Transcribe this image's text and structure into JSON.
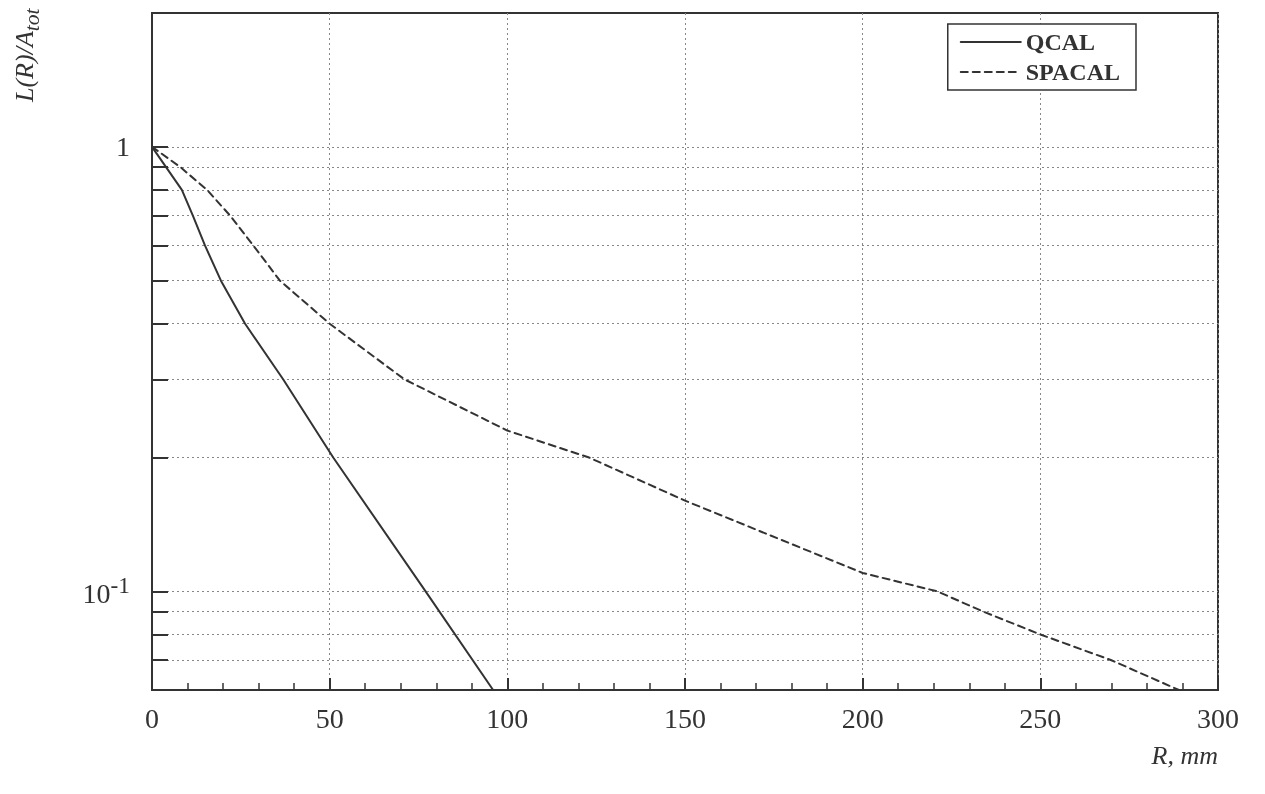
{
  "chart_data": {
    "type": "line",
    "xlabel": "R, mm",
    "ylabel": "L(R)/A$_{tot}$",
    "series": [
      {
        "name": "QCAL",
        "color": "#333333",
        "line_style": "solid",
        "x": [
          0,
          8.4,
          11.5,
          14.9,
          19.4,
          26.2,
          36.9,
          51,
          77,
          96
        ],
        "values": [
          1,
          0.8,
          0.7,
          0.6,
          0.5,
          0.4,
          0.3,
          0.2,
          0.1,
          0.06
        ]
      },
      {
        "name": "SPACAL",
        "color": "#333333",
        "line_style": "dashed",
        "x": [
          0,
          8,
          15.5,
          22,
          28.5,
          36,
          50,
          71,
          100,
          123,
          150,
          200,
          221,
          234,
          250,
          270,
          289
        ],
        "values": [
          1,
          0.9,
          0.8,
          0.7,
          0.6,
          0.5,
          0.4,
          0.3,
          0.23,
          0.2,
          0.16,
          0.11,
          0.1,
          0.09,
          0.08,
          0.07,
          0.06
        ]
      }
    ],
    "xlim": [
      0,
      300
    ],
    "xticks": [
      0,
      50,
      100,
      150,
      200,
      250,
      300
    ],
    "ylim": [
      0.06,
      2
    ],
    "yticks": [
      {
        "value": 0.07,
        "label": null
      },
      {
        "value": 0.08,
        "label": null
      },
      {
        "value": 0.09,
        "label": null
      },
      {
        "value": 0.1,
        "label": "10$^{-1}$"
      },
      {
        "value": 0.2,
        "label": null
      },
      {
        "value": 0.3,
        "label": null
      },
      {
        "value": 0.4,
        "label": null
      },
      {
        "value": 0.5,
        "label": null
      },
      {
        "value": 0.6,
        "label": null
      },
      {
        "value": 0.7,
        "label": null
      },
      {
        "value": 0.8,
        "label": null
      },
      {
        "value": 0.9,
        "label": null
      },
      1
    ],
    "log": "y",
    "grid": true,
    "legend": "top right",
    "marker": "none"
  }
}
